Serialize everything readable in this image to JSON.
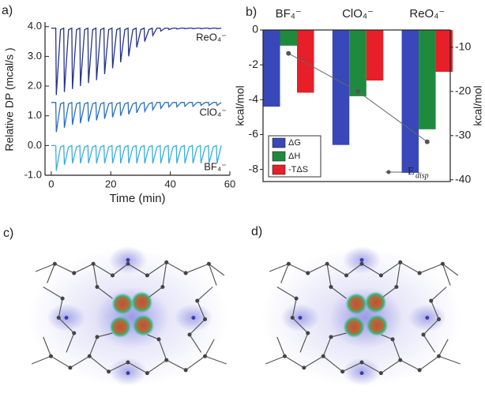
{
  "chart_data": [
    {
      "type": "line",
      "panel_label": "a)",
      "xlabel": "Time (min)",
      "ylabel": "Relative DP (mcal/s )",
      "x": [
        0,
        1.5,
        1.7,
        3.1,
        4.2,
        4.4,
        5.8,
        6.9,
        7.1,
        8.5,
        9.6,
        9.8,
        11.2,
        12.3,
        12.5,
        13.9,
        15.0,
        15.2,
        16.6,
        17.7,
        17.9,
        19.3,
        20.4,
        20.6,
        22.0,
        23.1,
        23.3,
        24.7,
        25.8,
        26.0,
        27.4,
        28.5,
        28.7,
        30.1,
        31.2,
        31.4,
        32.8,
        33.9,
        34.1,
        35.5,
        36.6,
        36.8,
        38.2,
        39.3,
        39.5,
        40.9,
        42.0,
        42.2,
        43.6,
        44.7,
        44.9,
        46.3,
        47.4,
        47.6,
        49.0,
        50.1,
        50.3,
        51.7,
        52.8,
        53.0,
        54.4,
        55.5,
        55.7,
        57.1
      ],
      "series": [
        {
          "name": "ReO₄⁻",
          "color": "#26338f",
          "values": [
            3.95,
            3.95,
            1.7,
            3.9,
            3.95,
            1.8,
            3.9,
            3.95,
            1.9,
            3.9,
            3.95,
            2.0,
            3.9,
            3.95,
            2.1,
            3.9,
            3.95,
            2.2,
            3.9,
            3.95,
            2.4,
            3.9,
            3.95,
            2.6,
            3.9,
            3.95,
            2.8,
            3.9,
            3.95,
            3.0,
            3.9,
            3.95,
            3.3,
            3.9,
            3.95,
            3.5,
            3.9,
            3.95,
            3.7,
            3.95,
            3.95,
            3.85,
            3.95,
            3.95,
            3.9,
            3.95,
            3.95,
            3.92,
            3.95,
            3.95,
            3.93,
            3.95,
            3.95,
            3.93,
            3.95,
            3.95,
            3.93,
            3.95,
            3.95,
            3.93,
            3.95,
            3.95,
            3.93,
            3.95
          ]
        },
        {
          "name": "ClO₄⁻",
          "color": "#2a6fc2",
          "values": [
            1.45,
            1.45,
            0.45,
            1.4,
            1.45,
            0.6,
            1.4,
            1.45,
            0.7,
            1.4,
            1.45,
            0.75,
            1.4,
            1.45,
            0.8,
            1.4,
            1.45,
            0.85,
            1.4,
            1.45,
            0.9,
            1.4,
            1.45,
            0.95,
            1.4,
            1.45,
            1.0,
            1.4,
            1.45,
            1.05,
            1.4,
            1.45,
            1.1,
            1.4,
            1.45,
            1.15,
            1.4,
            1.45,
            1.2,
            1.45,
            1.45,
            1.25,
            1.45,
            1.45,
            1.3,
            1.45,
            1.45,
            1.3,
            1.45,
            1.45,
            1.32,
            1.45,
            1.45,
            1.32,
            1.45,
            1.45,
            1.35,
            1.45,
            1.45,
            1.35,
            1.45,
            1.45,
            1.35,
            1.45
          ]
        },
        {
          "name": "BF₄⁻",
          "color": "#38aee2",
          "values": [
            0.0,
            0.0,
            -0.85,
            -0.05,
            0.0,
            -0.65,
            -0.05,
            0.0,
            -0.6,
            -0.05,
            0.0,
            -0.6,
            -0.05,
            0.0,
            -0.6,
            -0.05,
            0.0,
            -0.6,
            -0.05,
            0.0,
            -0.6,
            -0.05,
            0.0,
            -0.6,
            -0.05,
            0.0,
            -0.6,
            -0.05,
            0.0,
            -0.6,
            -0.05,
            0.0,
            -0.6,
            -0.05,
            0.0,
            -0.6,
            -0.05,
            0.0,
            -0.6,
            -0.05,
            0.0,
            -0.6,
            -0.05,
            0.0,
            -0.6,
            -0.05,
            0.0,
            -0.6,
            -0.05,
            0.0,
            -0.6,
            -0.05,
            0.0,
            -0.6,
            -0.05,
            0.0,
            -0.6,
            -0.05,
            0.0,
            -0.6,
            -0.05,
            0.0,
            -0.6,
            0.0
          ]
        }
      ],
      "xlim": [
        -2.1,
        60
      ],
      "xticks": [
        0,
        20,
        40,
        60
      ],
      "ylim": [
        -1,
        4.1
      ],
      "yticks": [
        {
          "value": -1,
          "label": "-1.0"
        },
        {
          "value": 0,
          "label": "0.0"
        },
        {
          "value": 1,
          "label": "1.0"
        },
        {
          "value": 2,
          "label": "2.0"
        },
        {
          "value": 3,
          "label": "3.0"
        },
        {
          "value": 4,
          "label": "4.0"
        }
      ]
    },
    {
      "type": "bar",
      "panel_label": "b)",
      "ylabel": "kcal/mol",
      "y2label": "kcal/mol",
      "categories": [
        "BF₄⁻",
        "ClO₄⁻",
        "ReO₄⁻"
      ],
      "series": [
        {
          "name": "ΔG",
          "color": "#3848b8",
          "values": [
            -4.4,
            -6.6,
            -8.2
          ]
        },
        {
          "name": "ΔH",
          "color": "#1f8a3e",
          "values": [
            -0.9,
            -3.8,
            -5.7
          ]
        },
        {
          "name": "-TΔS",
          "color": "#e61f28",
          "values": [
            -3.6,
            -2.9,
            -2.4
          ]
        },
        {
          "name": "E",
          "name_subscript": "disp",
          "type": "line",
          "axis": "y2",
          "color": "#666666",
          "values": [
            -11.4,
            -20,
            -31.4
          ]
        }
      ],
      "ylim": [
        -8.7,
        0
      ],
      "yticks": [
        0,
        -2,
        -4,
        -6,
        -8
      ],
      "y2lim": [
        -40.4,
        -6.1
      ],
      "y2ticks": [
        -10,
        -20,
        -30,
        -40
      ]
    }
  ],
  "images": [
    {
      "label": "c)"
    },
    {
      "label": "d)"
    }
  ]
}
